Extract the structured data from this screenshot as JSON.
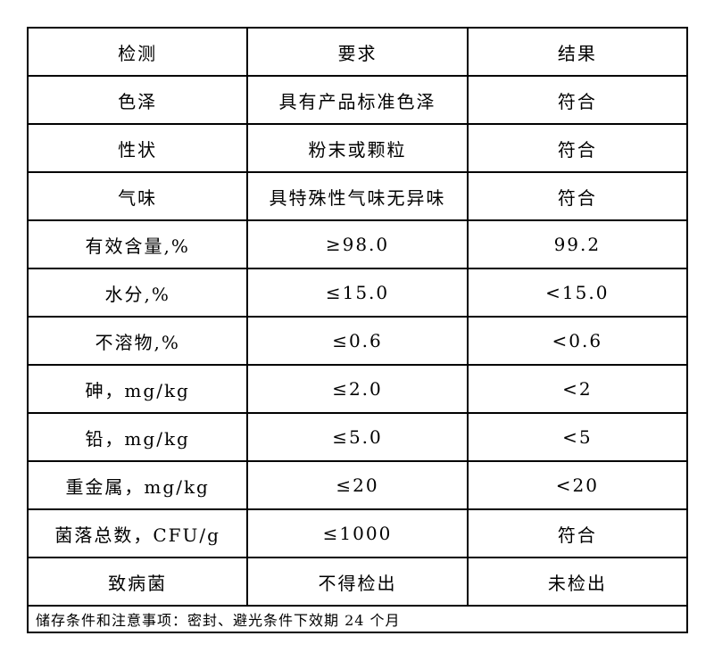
{
  "page": {
    "background_color": "#ffffff",
    "border_color": "#000000",
    "text_color": "#000000"
  },
  "table": {
    "columns": [
      "检测",
      "要求",
      "结果"
    ],
    "rows": [
      {
        "item": "色泽",
        "requirement": "具有产品标准色泽",
        "result": "符合"
      },
      {
        "item": "性状",
        "requirement": "粉末或颗粒",
        "result": "符合"
      },
      {
        "item": "气味",
        "requirement": "具特殊性气味无异味",
        "result": "符合"
      },
      {
        "item": "有效含量,%",
        "requirement": "≥98.0",
        "result": "99.2"
      },
      {
        "item": "水分,%",
        "requirement": "≤15.0",
        "result": "<15.0"
      },
      {
        "item": "不溶物,%",
        "requirement": "≤0.6",
        "result": "<0.6"
      },
      {
        "item": "砷，mg/kg",
        "requirement": "≤2.0",
        "result": "<2"
      },
      {
        "item": "铅，mg/kg",
        "requirement": "≤5.0",
        "result": "<5"
      },
      {
        "item": "重金属，mg/kg",
        "requirement": "≤20",
        "result": "<20"
      },
      {
        "item": "菌落总数，CFU/g",
        "requirement": "≤1000",
        "result": "符合"
      },
      {
        "item": "致病菌",
        "requirement": "不得检出",
        "result": "未检出"
      }
    ],
    "footer": "储存条件和注意事项：密封、避光条件下效期 24 个月"
  }
}
